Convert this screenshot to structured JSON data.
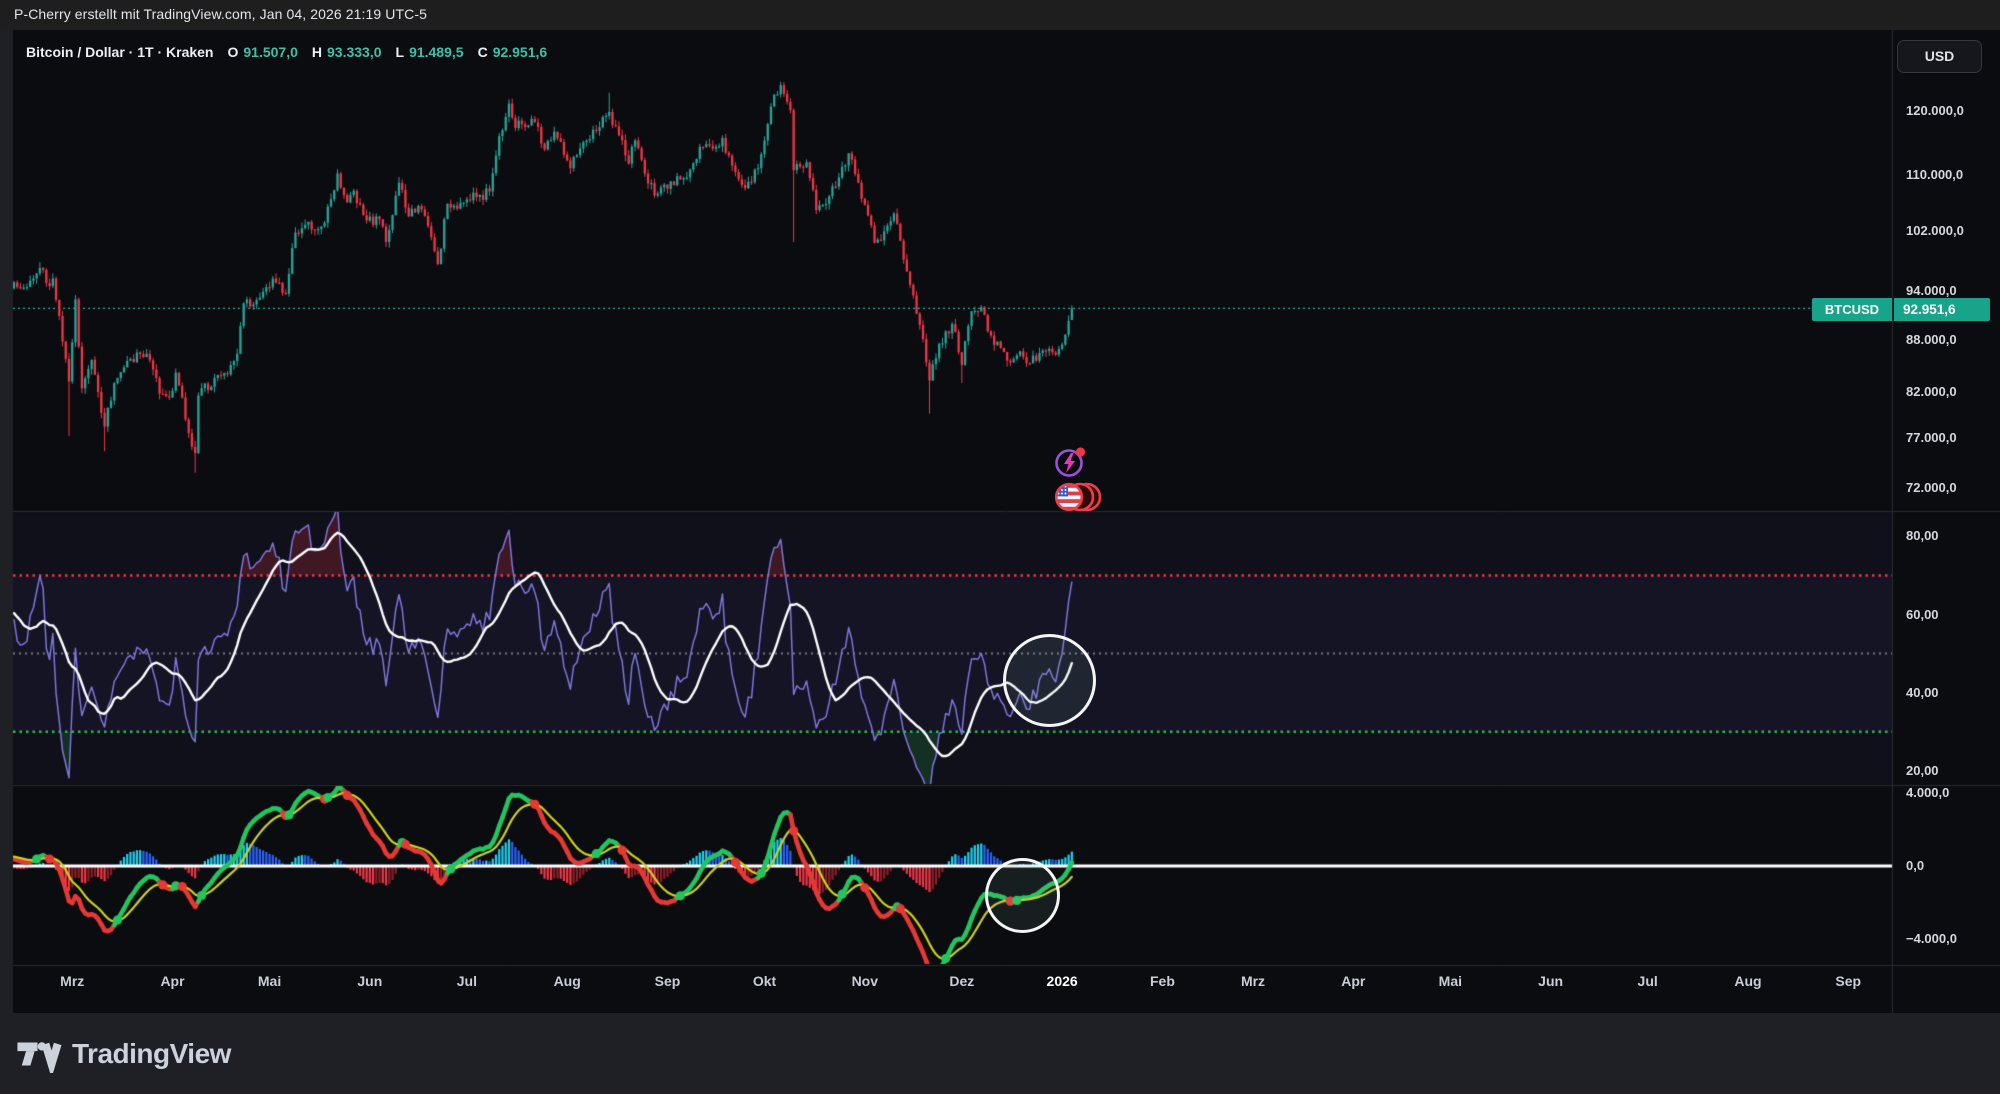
{
  "header": {
    "attribution": "P-Cherry erstellt mit TradingView.com, Jan 04, 2026 21:19 UTC-5"
  },
  "symbol_line": {
    "title": "Bitcoin / Dollar · 1T · Kraken",
    "ohlc": [
      {
        "label": "O",
        "value": "91.507,0"
      },
      {
        "label": "H",
        "value": "93.333,0"
      },
      {
        "label": "L",
        "value": "91.489,5"
      },
      {
        "label": "C",
        "value": "92.951,6"
      }
    ]
  },
  "price_scale": {
    "currency": "USD",
    "ticks": [
      {
        "label": "120.000,0",
        "value": 120000
      },
      {
        "label": "110.000,0",
        "value": 110000
      },
      {
        "label": "102.000,0",
        "value": 102000
      },
      {
        "label": "94.000,0",
        "value": 94000
      },
      {
        "label": "88.000,0",
        "value": 88000
      },
      {
        "label": "82.000,0",
        "value": 82000
      },
      {
        "label": "77.000,0",
        "value": 77000
      },
      {
        "label": "72.000,0",
        "value": 72000
      }
    ],
    "price_label": {
      "symbol": "BTCUSD",
      "value": "92.951,6"
    }
  },
  "rsi_scale": {
    "ticks": [
      {
        "label": "80,00",
        "value": 80
      },
      {
        "label": "60,00",
        "value": 60
      },
      {
        "label": "40,00",
        "value": 40
      },
      {
        "label": "20,00",
        "value": 20
      }
    ]
  },
  "macd_scale": {
    "ticks": [
      {
        "label": "4.000,0",
        "value": 4000
      },
      {
        "label": "0,0",
        "value": 0
      },
      {
        "label": "−4.000,0",
        "value": -4000
      }
    ]
  },
  "time_axis": {
    "labels": [
      {
        "label": "Mrz",
        "day": 18
      },
      {
        "label": "Apr",
        "day": 49
      },
      {
        "label": "Mai",
        "day": 79
      },
      {
        "label": "Jun",
        "day": 110
      },
      {
        "label": "Jul",
        "day": 140
      },
      {
        "label": "Aug",
        "day": 171
      },
      {
        "label": "Sep",
        "day": 202
      },
      {
        "label": "Okt",
        "day": 232
      },
      {
        "label": "Nov",
        "day": 263
      },
      {
        "label": "Dez",
        "day": 293
      },
      {
        "label": "2026",
        "day": 324,
        "year": true
      },
      {
        "label": "Feb",
        "day": 355
      },
      {
        "label": "Mrz",
        "day": 383
      },
      {
        "label": "Apr",
        "day": 414
      },
      {
        "label": "Mai",
        "day": 444
      },
      {
        "label": "Jun",
        "day": 475
      },
      {
        "label": "Jul",
        "day": 505
      },
      {
        "label": "Aug",
        "day": 536
      },
      {
        "label": "Sep",
        "day": 567
      }
    ]
  },
  "footer": {
    "brand": "TradingView"
  },
  "colors": {
    "up": "#26a69a",
    "down": "#f23645",
    "price_line": "#26a69a",
    "teal_text": "#40bfa9",
    "label_bg": "#18a38b",
    "rsi_line": "#7f76dc",
    "rsi_ma": "#ffffff",
    "rsi_overbought": "#f23645",
    "rsi_middle": "#9598a1",
    "rsi_oversold": "#2dbd4e",
    "macd_pos_grow": "#1fd1f0",
    "macd_pos": "#2962ff",
    "macd_neg": "#f23645",
    "macd_neg_fade": "#8c1f26",
    "macd_line_up": "#22c55e",
    "macd_line_down": "#e53935",
    "macd_signal": "#cdd11f",
    "zero_line": "#ffffff"
  },
  "chart_data": {
    "type": "candlestick",
    "symbol": "BTCUSD",
    "exchange": "Kraken",
    "timeframe": "1T",
    "title": "Bitcoin / Dollar · 1T · Kraken",
    "price_axis": {
      "scale": "log",
      "ticks": [
        120000,
        110000,
        102000,
        94000,
        88000,
        82000,
        77000,
        72000
      ]
    },
    "current_price": 92951.6,
    "last_candle": {
      "open": 91507.0,
      "high": 93333.0,
      "low": 91489.5,
      "close": 92951.6
    },
    "price_anchors": [
      [
        -40,
        91
      ],
      [
        -30,
        96
      ],
      [
        -22,
        95
      ],
      [
        -14,
        96.5
      ],
      [
        -6,
        96
      ],
      [
        0,
        96.3
      ],
      [
        3,
        95.6
      ],
      [
        6,
        96.8
      ],
      [
        8,
        98.2
      ],
      [
        10,
        96.2
      ],
      [
        12,
        96.8
      ],
      [
        14,
        92
      ],
      [
        16,
        86.8
      ],
      [
        17,
        84.2
      ],
      [
        19,
        94.1
      ],
      [
        21,
        83.4
      ],
      [
        24,
        86.7
      ],
      [
        26,
        83
      ],
      [
        28,
        79.2
      ],
      [
        31,
        84
      ],
      [
        36,
        86.8
      ],
      [
        41,
        87.4
      ],
      [
        45,
        82.8
      ],
      [
        48,
        82.4
      ],
      [
        50,
        85.2
      ],
      [
        54,
        78.5
      ],
      [
        56,
        76.4
      ],
      [
        57,
        82.6
      ],
      [
        62,
        84.6
      ],
      [
        66,
        85
      ],
      [
        69,
        87.4
      ],
      [
        71,
        93.6
      ],
      [
        76,
        94.3
      ],
      [
        80,
        96.8
      ],
      [
        84,
        94.8
      ],
      [
        87,
        103
      ],
      [
        90,
        104.1
      ],
      [
        93,
        103.4
      ],
      [
        96,
        104.4
      ],
      [
        100,
        111.6
      ],
      [
        103,
        107.3
      ],
      [
        105,
        109
      ],
      [
        109,
        104.7
      ],
      [
        113,
        104.9
      ],
      [
        115,
        101.7
      ],
      [
        119,
        110.2
      ],
      [
        122,
        105.3
      ],
      [
        125,
        106.8
      ],
      [
        128,
        103.9
      ],
      [
        131,
        98.7
      ],
      [
        134,
        107.1
      ],
      [
        139,
        107.3
      ],
      [
        143,
        108.1
      ],
      [
        147,
        108.9
      ],
      [
        150,
        117.4
      ],
      [
        153,
        122.7
      ],
      [
        155,
        118.7
      ],
      [
        157,
        119.3
      ],
      [
        161,
        119.6
      ],
      [
        164,
        115.3
      ],
      [
        167,
        118.1
      ],
      [
        171,
        113.6
      ],
      [
        172,
        112.4
      ],
      [
        177,
        116.7
      ],
      [
        181,
        118.8
      ],
      [
        184,
        121.3
      ],
      [
        187,
        117.5
      ],
      [
        190,
        113.1
      ],
      [
        192,
        116.7
      ],
      [
        196,
        110.1
      ],
      [
        199,
        108.6
      ],
      [
        202,
        109.3
      ],
      [
        206,
        110.7
      ],
      [
        209,
        112.2
      ],
      [
        213,
        115.7
      ],
      [
        216,
        115.4
      ],
      [
        219,
        117.1
      ],
      [
        222,
        112.8
      ],
      [
        226,
        109.4
      ],
      [
        230,
        112.4
      ],
      [
        232,
        116.7
      ],
      [
        234,
        122.2
      ],
      [
        237,
        125.8
      ],
      [
        240,
        121.6
      ],
      [
        241,
        112.1
      ],
      [
        245,
        113.3
      ],
      [
        248,
        106.2
      ],
      [
        252,
        108.2
      ],
      [
        255,
        111
      ],
      [
        258,
        114.7
      ],
      [
        261,
        110.2
      ],
      [
        264,
        105.4
      ],
      [
        266,
        101.6
      ],
      [
        269,
        103.2
      ],
      [
        272,
        105.7
      ],
      [
        275,
        99.3
      ],
      [
        278,
        94.6
      ],
      [
        280,
        90.9
      ],
      [
        283,
        84.3
      ],
      [
        286,
        88.6
      ],
      [
        288,
        90.1
      ],
      [
        290,
        91
      ],
      [
        293,
        86.1
      ],
      [
        296,
        92.6
      ],
      [
        299,
        93.1
      ],
      [
        302,
        89.6
      ],
      [
        305,
        88.1
      ],
      [
        308,
        86.4
      ],
      [
        311,
        87.7
      ],
      [
        314,
        86.3
      ],
      [
        317,
        87.5
      ],
      [
        320,
        88
      ],
      [
        322,
        87.3
      ],
      [
        324,
        88.5
      ],
      [
        325,
        89.7
      ],
      [
        326,
        91.4
      ],
      [
        327,
        92.9516
      ]
    ],
    "wick_events": [
      {
        "day": 17,
        "low": 78.2
      },
      {
        "day": 28,
        "low": 76.6
      },
      {
        "day": 56,
        "low": 74.4
      },
      {
        "day": 100,
        "high": 112
      },
      {
        "day": 153,
        "high": 123.2
      },
      {
        "day": 184,
        "high": 124.5
      },
      {
        "day": 237,
        "high": 126.2
      },
      {
        "day": 241,
        "low": 101.7
      },
      {
        "day": 283,
        "low": 80.6
      },
      {
        "day": 293,
        "low": 84
      }
    ],
    "indicators": [
      {
        "type": "rsi",
        "length": 14,
        "ma_length": 14,
        "levels": {
          "overbought": 70,
          "middle": 50,
          "oversold": 30
        },
        "axis_ticks": [
          80,
          60,
          40,
          20
        ],
        "last_value_approx": 63
      },
      {
        "type": "macd",
        "fast": 12,
        "slow": 26,
        "signal": 9,
        "axis_ticks": [
          4000,
          0,
          -4000
        ]
      }
    ]
  }
}
